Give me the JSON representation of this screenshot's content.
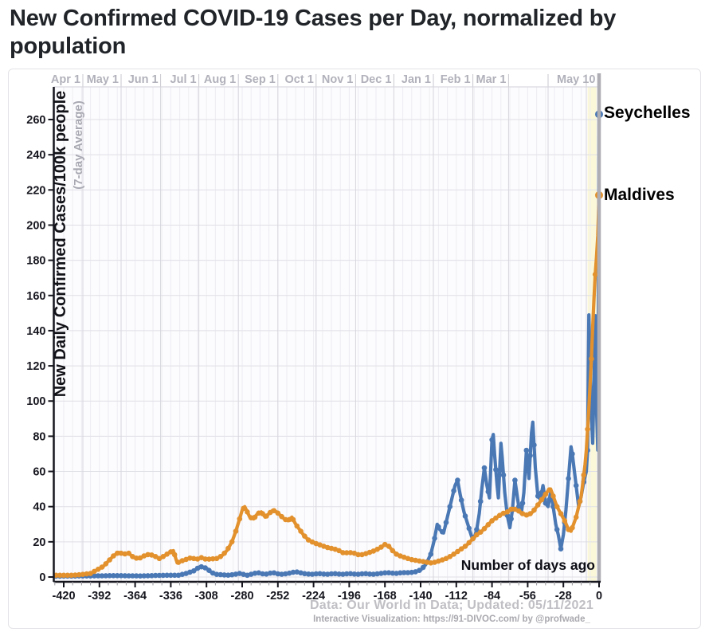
{
  "page": {
    "title": "New Confirmed COVID-19 Cases per Day, normalized by population"
  },
  "chart": {
    "y_axis": {
      "title": "New Daily Confirmed Cases/100k people",
      "subtitle": "(7-day Average)",
      "ticks": [
        0,
        20,
        40,
        60,
        80,
        100,
        120,
        140,
        160,
        180,
        200,
        220,
        240,
        260
      ]
    },
    "x_axis": {
      "label": "Number of days ago",
      "ticks": [
        -420,
        -392,
        -364,
        -336,
        -308,
        -280,
        -252,
        -224,
        -196,
        -168,
        -140,
        -112,
        -84,
        -56,
        -28,
        0
      ]
    },
    "footer": {
      "line1": "Data: Our World in Data; Updated: 05/11/2021",
      "line2": "Interactive Visualization: https://91-DIVOC.com/ by @profwade_"
    },
    "colors": {
      "seychelles": "#4a78b5",
      "maldives": "#e2912d",
      "today_line": "#aeaeb4",
      "highlight_band": "#fbf8da",
      "month_label": "#b1b1bb",
      "grid_minor": "#ededf2",
      "grid_month": "#d5d5dd",
      "grid_horizontal": "#dfdfe6",
      "axis": "#16161f"
    }
  },
  "chart_data": {
    "type": "line",
    "title": "New Confirmed COVID-19 Cases per Day, normalized by population",
    "xlabel": "Number of days ago",
    "ylabel": "New Daily Confirmed Cases/100k people (7-day Average)",
    "x_range": [
      -428,
      0
    ],
    "y_range_visible": [
      0,
      278
    ],
    "grid": true,
    "legend_position": "end-of-line-labels",
    "month_labels": [
      {
        "label": "Apr 1",
        "day": -405
      },
      {
        "label": "May 1",
        "day": -375
      },
      {
        "label": "Jun 1",
        "day": -344
      },
      {
        "label": "Jul 1",
        "day": -314
      },
      {
        "label": "Aug 1",
        "day": -283
      },
      {
        "label": "Sep 1",
        "day": -252
      },
      {
        "label": "Oct 1",
        "day": -222
      },
      {
        "label": "Nov 1",
        "day": -191
      },
      {
        "label": "Dec 1",
        "day": -161
      },
      {
        "label": "Jan 1",
        "day": -130
      },
      {
        "label": "Feb 1",
        "day": -99
      },
      {
        "label": "Mar 1",
        "day": -71
      },
      {
        "label": "",
        "day": -40
      },
      {
        "label": "",
        "day": -10
      },
      {
        "label": "May 10",
        "day": -1
      }
    ],
    "series": [
      {
        "name": "Seychelles",
        "color": "#4a78b5",
        "end_value": 263,
        "points": [
          [
            -428,
            0.5
          ],
          [
            -400,
            0.6
          ],
          [
            -380,
            0.8
          ],
          [
            -360,
            0.6
          ],
          [
            -340,
            1
          ],
          [
            -330,
            1
          ],
          [
            -324,
            2
          ],
          [
            -318,
            3.5
          ],
          [
            -313,
            6
          ],
          [
            -308,
            5
          ],
          [
            -304,
            2.5
          ],
          [
            -300,
            1.5
          ],
          [
            -290,
            1
          ],
          [
            -282,
            2
          ],
          [
            -276,
            1
          ],
          [
            -268,
            2.5
          ],
          [
            -262,
            1.5
          ],
          [
            -256,
            2.5
          ],
          [
            -250,
            1.5
          ],
          [
            -244,
            2
          ],
          [
            -238,
            3
          ],
          [
            -232,
            2
          ],
          [
            -226,
            1.5
          ],
          [
            -220,
            2
          ],
          [
            -214,
            1.5
          ],
          [
            -208,
            2
          ],
          [
            -202,
            1.5
          ],
          [
            -196,
            2
          ],
          [
            -190,
            1.5
          ],
          [
            -184,
            2
          ],
          [
            -178,
            1.5
          ],
          [
            -172,
            2
          ],
          [
            -166,
            2.5
          ],
          [
            -160,
            2
          ],
          [
            -154,
            2.5
          ],
          [
            -148,
            2.5
          ],
          [
            -144,
            3
          ],
          [
            -140,
            4
          ],
          [
            -136,
            7
          ],
          [
            -132,
            13
          ],
          [
            -129,
            22
          ],
          [
            -127,
            30
          ],
          [
            -125,
            27
          ],
          [
            -122,
            25
          ],
          [
            -119,
            34
          ],
          [
            -116,
            43
          ],
          [
            -113,
            52
          ],
          [
            -111,
            55
          ],
          [
            -109,
            47
          ],
          [
            -106,
            37
          ],
          [
            -103,
            30
          ],
          [
            -100,
            23
          ],
          [
            -98,
            22
          ],
          [
            -96,
            27
          ],
          [
            -94,
            36
          ],
          [
            -92,
            50
          ],
          [
            -90,
            62
          ],
          [
            -88,
            52
          ],
          [
            -86,
            45
          ],
          [
            -84,
            78
          ],
          [
            -83,
            81
          ],
          [
            -82,
            70
          ],
          [
            -80,
            52
          ],
          [
            -79,
            45
          ],
          [
            -77,
            76
          ],
          [
            -76,
            68
          ],
          [
            -74,
            48
          ],
          [
            -72,
            35
          ],
          [
            -70,
            28
          ],
          [
            -68,
            38
          ],
          [
            -66,
            55
          ],
          [
            -65,
            50
          ],
          [
            -63,
            40
          ],
          [
            -61,
            36
          ],
          [
            -59,
            48
          ],
          [
            -57,
            72
          ],
          [
            -55,
            56
          ],
          [
            -53,
            82
          ],
          [
            -52,
            88
          ],
          [
            -50,
            62
          ],
          [
            -48,
            46
          ],
          [
            -46,
            44
          ],
          [
            -44,
            52
          ],
          [
            -42,
            42
          ],
          [
            -40,
            40
          ],
          [
            -38,
            48
          ],
          [
            -36,
            40
          ],
          [
            -34,
            30
          ],
          [
            -32,
            24
          ],
          [
            -30,
            16
          ],
          [
            -28,
            24
          ],
          [
            -26,
            38
          ],
          [
            -24,
            56
          ],
          [
            -22,
            74
          ],
          [
            -21,
            70
          ],
          [
            -19,
            58
          ],
          [
            -17,
            46
          ],
          [
            -16,
            40
          ],
          [
            -14,
            46
          ],
          [
            -12,
            54
          ],
          [
            -10,
            60
          ],
          [
            -9,
            72
          ],
          [
            -8,
            149
          ],
          [
            -7,
            118
          ],
          [
            -6,
            92
          ],
          [
            -5,
            76
          ],
          [
            -4,
            108
          ],
          [
            -3,
            148
          ],
          [
            -2,
            96
          ],
          [
            -1,
            72
          ],
          [
            0,
            263
          ]
        ]
      },
      {
        "name": "Maldives",
        "color": "#e2912d",
        "end_value": 217,
        "points": [
          [
            -428,
            1
          ],
          [
            -420,
            1
          ],
          [
            -412,
            1
          ],
          [
            -405,
            1.5
          ],
          [
            -399,
            2
          ],
          [
            -394,
            4
          ],
          [
            -389,
            6
          ],
          [
            -385,
            9
          ],
          [
            -381,
            12
          ],
          [
            -377,
            14
          ],
          [
            -373,
            13
          ],
          [
            -369,
            13.5
          ],
          [
            -365,
            11
          ],
          [
            -361,
            10.5
          ],
          [
            -357,
            12
          ],
          [
            -353,
            13
          ],
          [
            -349,
            12
          ],
          [
            -345,
            10.5
          ],
          [
            -341,
            12
          ],
          [
            -337,
            14
          ],
          [
            -334,
            15
          ],
          [
            -331,
            8
          ],
          [
            -328,
            9
          ],
          [
            -324,
            10
          ],
          [
            -320,
            11
          ],
          [
            -316,
            10
          ],
          [
            -312,
            11
          ],
          [
            -308,
            10
          ],
          [
            -300,
            10.5
          ],
          [
            -296,
            12
          ],
          [
            -292,
            15
          ],
          [
            -288,
            20
          ],
          [
            -285,
            26
          ],
          [
            -282,
            33
          ],
          [
            -280,
            38
          ],
          [
            -278,
            40
          ],
          [
            -276,
            37
          ],
          [
            -274,
            34
          ],
          [
            -271,
            33
          ],
          [
            -268,
            36
          ],
          [
            -265,
            37
          ],
          [
            -262,
            34
          ],
          [
            -259,
            36
          ],
          [
            -256,
            38
          ],
          [
            -253,
            37
          ],
          [
            -250,
            35
          ],
          [
            -247,
            33
          ],
          [
            -244,
            32
          ],
          [
            -241,
            34
          ],
          [
            -238,
            30
          ],
          [
            -235,
            27
          ],
          [
            -232,
            24
          ],
          [
            -228,
            21
          ],
          [
            -224,
            19.5
          ],
          [
            -220,
            18.5
          ],
          [
            -216,
            17.5
          ],
          [
            -212,
            16.5
          ],
          [
            -208,
            16
          ],
          [
            -204,
            15
          ],
          [
            -200,
            13.5
          ],
          [
            -196,
            14
          ],
          [
            -192,
            13.5
          ],
          [
            -188,
            12.5
          ],
          [
            -184,
            13
          ],
          [
            -180,
            14
          ],
          [
            -176,
            15
          ],
          [
            -172,
            16.5
          ],
          [
            -168,
            18.5
          ],
          [
            -165,
            17.5
          ],
          [
            -162,
            15
          ],
          [
            -159,
            13
          ],
          [
            -156,
            12
          ],
          [
            -152,
            11
          ],
          [
            -148,
            10
          ],
          [
            -144,
            9.5
          ],
          [
            -140,
            9
          ],
          [
            -136,
            8.5
          ],
          [
            -132,
            8
          ],
          [
            -128,
            8.5
          ],
          [
            -124,
            9.5
          ],
          [
            -120,
            10.5
          ],
          [
            -116,
            12
          ],
          [
            -112,
            14
          ],
          [
            -108,
            16
          ],
          [
            -104,
            18
          ],
          [
            -100,
            21
          ],
          [
            -96,
            24
          ],
          [
            -92,
            26
          ],
          [
            -88,
            29
          ],
          [
            -84,
            32
          ],
          [
            -80,
            34
          ],
          [
            -76,
            36
          ],
          [
            -72,
            37
          ],
          [
            -68,
            39
          ],
          [
            -64,
            38
          ],
          [
            -60,
            36
          ],
          [
            -56,
            35
          ],
          [
            -52,
            37
          ],
          [
            -48,
            41
          ],
          [
            -44,
            45
          ],
          [
            -40,
            49
          ],
          [
            -38,
            50
          ],
          [
            -36,
            46
          ],
          [
            -33,
            40
          ],
          [
            -30,
            36
          ],
          [
            -27,
            32
          ],
          [
            -24,
            27
          ],
          [
            -22,
            26
          ],
          [
            -20,
            30
          ],
          [
            -18,
            34
          ],
          [
            -16,
            40
          ],
          [
            -14,
            46
          ],
          [
            -13,
            52
          ],
          [
            -12,
            58
          ],
          [
            -11,
            64
          ],
          [
            -10,
            72
          ],
          [
            -9,
            84
          ],
          [
            -8,
            96
          ],
          [
            -7,
            110
          ],
          [
            -6,
            124
          ],
          [
            -5,
            142
          ],
          [
            -4,
            158
          ],
          [
            -3,
            172
          ],
          [
            -2,
            182
          ],
          [
            -1,
            194
          ],
          [
            0,
            217
          ]
        ]
      }
    ]
  }
}
